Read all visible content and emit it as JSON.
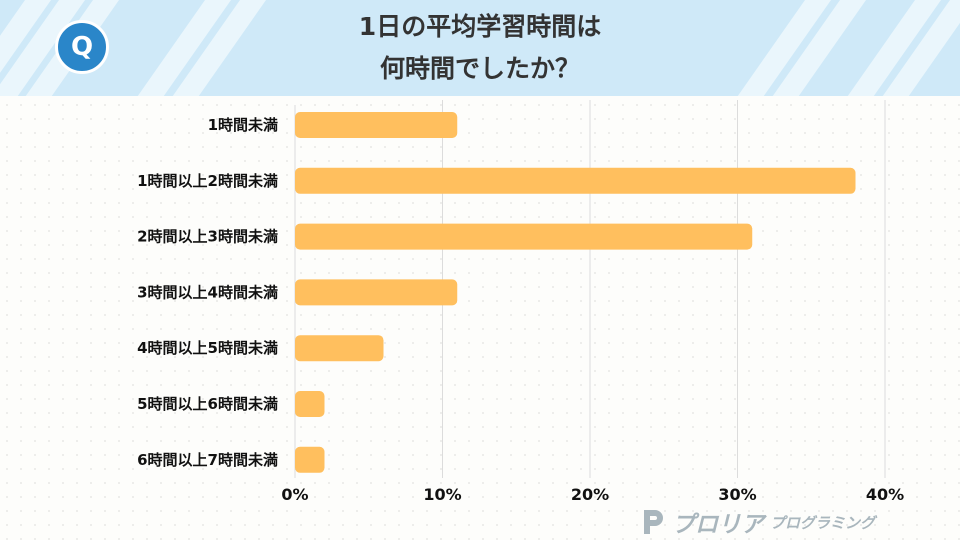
{
  "header": {
    "badge": "Q",
    "title_line1": "1日の平均学習時間は",
    "title_line2": "何時間でしたか？",
    "background_color": "#cfe9f8"
  },
  "chart_data": {
    "type": "bar",
    "orientation": "horizontal",
    "title": "1日の平均学習時間は何時間でしたか？",
    "categories": [
      "1時間未満",
      "1時間以上2時間未満",
      "2時間以上3時間未満",
      "3時間以上4時間未満",
      "4時間以上5時間未満",
      "5時間以上6時間未満",
      "6時間以上7時間未満"
    ],
    "values": [
      11,
      38,
      31,
      11,
      6,
      2,
      2
    ],
    "value_unit": "%",
    "xlim": [
      0,
      40
    ],
    "x_ticks": [
      "0%",
      "10%",
      "20%",
      "30%",
      "40%"
    ],
    "grid": true,
    "bar_color": "#ffbf5e",
    "xlabel": "",
    "ylabel": ""
  },
  "logo": {
    "name": "プロリア",
    "sub": "プログラミング",
    "color": "#a9b6bd"
  }
}
